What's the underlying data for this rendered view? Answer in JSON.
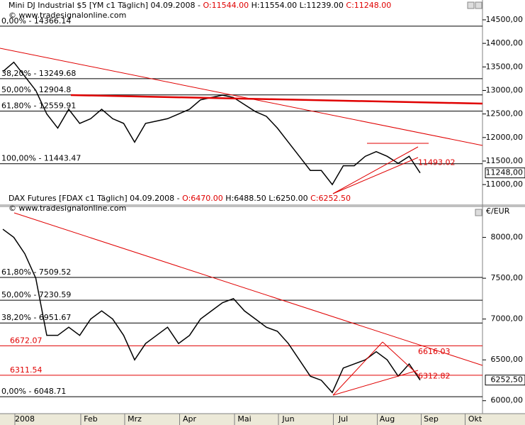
{
  "chart_data": [
    {
      "type": "line",
      "color": "#000000",
      "header": [
        {
          "text": "Mini DJ Industrial $5 [YM c1  Täglich] 04.09.2008 - ",
          "color": "#000000"
        },
        {
          "text": "O:11544.00",
          "color": "#e00000"
        },
        {
          "text": " H:11554.00 L:11239.00 ",
          "color": "#000000"
        },
        {
          "text": "C:11248.00",
          "color": "#e00000"
        }
      ],
      "watermark": "© www.tradesignalonline.com",
      "values": [
        13400,
        13600,
        13300,
        13000,
        12500,
        12200,
        12600,
        12300,
        12400,
        12600,
        12400,
        12300,
        11900,
        12300,
        12350,
        12400,
        12500,
        12600,
        12800,
        12850,
        12900,
        12850,
        12700,
        12550,
        12450,
        12200,
        11900,
        11600,
        11300,
        11300,
        11000,
        11400,
        11400,
        11600,
        11700,
        11600,
        11450,
        11600,
        11248,
        null,
        null,
        null,
        null,
        null
      ],
      "ylim": [
        10580,
        14620
      ],
      "yticks": [
        {
          "value": 11000,
          "label": "11000,00"
        },
        {
          "value": 11500,
          "label": "11500,00"
        },
        {
          "value": 12000,
          "label": "12000,00"
        },
        {
          "value": 12500,
          "label": "12500,00"
        },
        {
          "value": 13000,
          "label": "13000,00"
        },
        {
          "value": 13500,
          "label": "13500,00"
        },
        {
          "value": 14000,
          "label": "14000,00"
        },
        {
          "value": 14500,
          "label": "14500,00"
        }
      ],
      "levels": [
        {
          "value": 14366.14,
          "label": "0,00% - 14366.14"
        },
        {
          "value": 13249.68,
          "label": "38,20% - 13249.68"
        },
        {
          "value": 12904.8,
          "label": "50,00% - 12904.8"
        },
        {
          "value": 12559.91,
          "label": "61,80% - 12559.91"
        },
        {
          "value": 11443.47,
          "label": "100,00% - 11443.47"
        }
      ],
      "lines": [],
      "notes": [
        {
          "value": 11493.02,
          "label": "11493.02"
        }
      ],
      "last": {
        "value": 11248,
        "label": "11248,00"
      }
    },
    {
      "type": "line",
      "color": "#000000",
      "header": [
        {
          "text": "DAX Futures [FDAX c1  Täglich] 04.09.2008 - ",
          "color": "#000000"
        },
        {
          "text": "O:6470.00",
          "color": "#e00000"
        },
        {
          "text": " H:6488.50 L:6250.00 ",
          "color": "#000000"
        },
        {
          "text": "C:6252.50",
          "color": "#e00000"
        }
      ],
      "watermark": "© www.tradesignalonline.com",
      "unit": "€/EUR",
      "categories": [
        null,
        null,
        "2008",
        null,
        null,
        null,
        null,
        null,
        "Feb",
        null,
        null,
        null,
        "Mrz",
        null,
        null,
        null,
        null,
        "Apr",
        null,
        null,
        null,
        null,
        "Mai",
        null,
        null,
        null,
        "Jun",
        null,
        null,
        null,
        null,
        "Jul",
        null,
        null,
        null,
        "Aug",
        null,
        null,
        null,
        "Sep",
        null,
        null,
        null,
        "Okt"
      ],
      "values": [
        8100,
        8000,
        7800,
        7500,
        6800,
        6800,
        6900,
        6800,
        7000,
        7100,
        7000,
        6800,
        6500,
        6700,
        6800,
        6900,
        6700,
        6800,
        7000,
        7100,
        7200,
        7250,
        7100,
        7000,
        6900,
        6850,
        6700,
        6500,
        6300,
        6250,
        6100,
        6400,
        6450,
        6500,
        6600,
        6500,
        6300,
        6450,
        6252.5,
        null,
        null,
        null,
        null,
        null
      ],
      "ylim": [
        5850,
        8370
      ],
      "yticks": [
        {
          "value": 6000,
          "label": "6000,00"
        },
        {
          "value": 6500,
          "label": "6500,00"
        },
        {
          "value": 7000,
          "label": "7000,00"
        },
        {
          "value": 7500,
          "label": "7500,00"
        },
        {
          "value": 8000,
          "label": "8000,00"
        }
      ],
      "levels": [
        {
          "value": 7509.52,
          "label": "61,80% - 7509.52"
        },
        {
          "value": 7230.59,
          "label": "50,00% - 7230.59"
        },
        {
          "value": 6951.67,
          "label": "38,20% - 6951.67"
        },
        {
          "value": 6048.71,
          "label": "0,00% - 6048.71"
        }
      ],
      "lines": [
        {
          "value": 6672.07,
          "label": "6672.07"
        },
        {
          "value": 6311.54,
          "label": "6311.54"
        }
      ],
      "notes": [
        {
          "value": 6616.03,
          "label": "6616.03"
        },
        {
          "value": 6312.82,
          "label": "6312.82"
        }
      ],
      "last": {
        "value": 6252.5,
        "label": "6252,50"
      }
    }
  ]
}
